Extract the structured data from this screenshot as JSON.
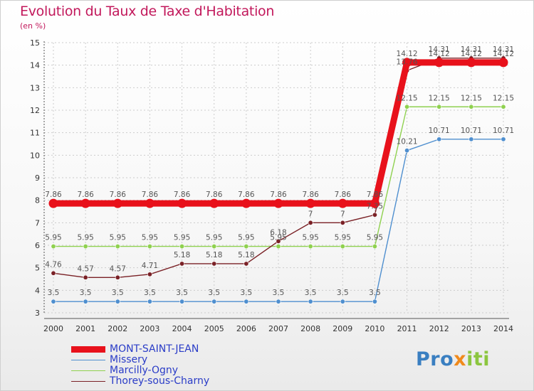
{
  "chart_data": {
    "type": "line",
    "title": "Evolution du Taux de Taxe d'Habitation",
    "ylabel": "(en %)",
    "xlabel": "",
    "ylim": [
      3,
      15
    ],
    "yticks": [
      "3",
      "4",
      "5",
      "6",
      "7",
      "8",
      "9",
      "10",
      "11",
      "12",
      "13",
      "14",
      "15"
    ],
    "x": [
      "2000",
      "2001",
      "2002",
      "2003",
      "2004",
      "2005",
      "2006",
      "2007",
      "2008",
      "2009",
      "2010",
      "2011",
      "2012",
      "2013",
      "2014"
    ],
    "series": [
      {
        "name": "MONT-SAINT-JEAN",
        "color": "#e8111b",
        "values": [
          7.86,
          7.86,
          7.86,
          7.86,
          7.86,
          7.86,
          7.86,
          7.86,
          7.86,
          7.86,
          7.86,
          14.12,
          14.12,
          14.12,
          14.12
        ],
        "labels": [
          "7.86",
          "7.86",
          "7.86",
          "7.86",
          "7.86",
          "7.86",
          "7.86",
          "7.86",
          "7.86",
          "7.86",
          "7.86",
          "14.12",
          "14.12",
          "14.12",
          "14.12"
        ]
      },
      {
        "name": "Missery",
        "color": "#4f8fcf",
        "values": [
          3.5,
          3.5,
          3.5,
          3.5,
          3.5,
          3.5,
          3.5,
          3.5,
          3.5,
          3.5,
          3.5,
          10.21,
          10.71,
          10.71,
          10.71
        ],
        "labels": [
          "3.5",
          "3.5",
          "3.5",
          "3.5",
          "3.5",
          "3.5",
          "3.5",
          "3.5",
          "3.5",
          "3.5",
          "3.5",
          "10.21",
          "10.71",
          "10.71",
          "10.71"
        ]
      },
      {
        "name": "Marcilly-Ogny",
        "color": "#8fd14f",
        "values": [
          5.95,
          5.95,
          5.95,
          5.95,
          5.95,
          5.95,
          5.95,
          5.95,
          5.95,
          5.95,
          5.95,
          12.15,
          12.15,
          12.15,
          12.15
        ],
        "labels": [
          "5.95",
          "5.95",
          "5.95",
          "5.95",
          "5.95",
          "5.95",
          "5.95",
          "5.95",
          "5.95",
          "5.95",
          "5.95",
          "12.15",
          "12.15",
          "12.15",
          "12.15"
        ]
      },
      {
        "name": "Thorey-sous-Charny",
        "color": "#7a2126",
        "values": [
          4.76,
          4.57,
          4.57,
          4.71,
          5.18,
          5.18,
          5.18,
          6.18,
          7,
          7,
          7.35,
          13.76,
          14.31,
          14.31,
          14.31
        ],
        "labels": [
          "4.76",
          "4.57",
          "4.57",
          "4.71",
          "5.18",
          "5.18",
          "5.18",
          "6.18",
          "7",
          "7",
          "7.35",
          "13.76",
          "14.31",
          "14.31",
          "14.31"
        ]
      }
    ],
    "legend": "bottom-left"
  },
  "branding": {
    "logo_parts": [
      "Pro",
      "x",
      "iti"
    ],
    "logo_colors": [
      "#3a7fc1",
      "#f08a1c",
      "#8cc63f"
    ]
  }
}
